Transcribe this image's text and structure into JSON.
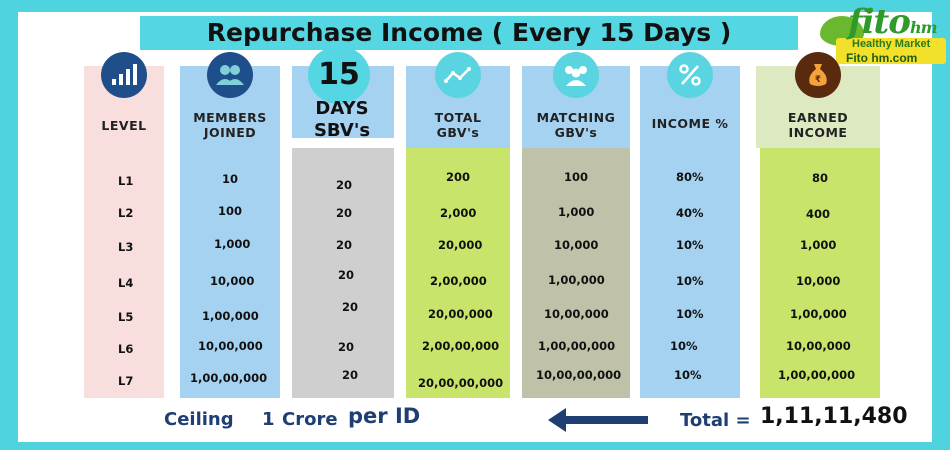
{
  "title": "Repurchase Income ( Every 15 Days )",
  "logo": {
    "brand": "fito",
    "brand_suffix": "hm",
    "tagline": "Healthy Market",
    "site": "Fito hm.com"
  },
  "days_badge": {
    "number": "15",
    "line1": "DAYS",
    "line2": "SBV's"
  },
  "columns": {
    "level": "LEVEL",
    "members": [
      "MEMBERS",
      "JOINED"
    ],
    "total": [
      "TOTAL",
      "GBV's"
    ],
    "matching": [
      "MATCHING",
      "GBV's"
    ],
    "income": "INCOME %",
    "earned": [
      "EARNED",
      "INCOME"
    ]
  },
  "rows": [
    {
      "level": "L1",
      "members": "10",
      "sbv": "20",
      "total": "200",
      "matching": "100",
      "income": "80%",
      "earned": "80"
    },
    {
      "level": "L2",
      "members": "100",
      "sbv": "20",
      "total": "2,000",
      "matching": "1,000",
      "income": "40%",
      "earned": "400"
    },
    {
      "level": "L3",
      "members": "1,000",
      "sbv": "20",
      "total": "20,000",
      "matching": "10,000",
      "income": "10%",
      "earned": "1,000"
    },
    {
      "level": "L4",
      "members": "10,000",
      "sbv": "20",
      "total": "2,00,000",
      "matching": "1,00,000",
      "income": "10%",
      "earned": "10,000"
    },
    {
      "level": "L5",
      "members": "1,00,000",
      "sbv": "20",
      "total": "20,00,000",
      "matching": "10,00,000",
      "income": "10%",
      "earned": "1,00,000"
    },
    {
      "level": "L6",
      "members": "10,00,000",
      "sbv": "20",
      "total": "2,00,00,000",
      "matching": "1,00,00,000",
      "income": "10%",
      "earned": "10,00,000"
    },
    {
      "level": "L7",
      "members": "1,00,00,000",
      "sbv": "20",
      "total": "20,00,00,000",
      "matching": "10,00,00,000",
      "income": "10%",
      "earned": "1,00,00,000"
    }
  ],
  "footer": {
    "ceiling": "Ceiling",
    "crore_num": "1",
    "crore": "Crore",
    "per_id": "per ID",
    "total_label": "Total =",
    "total_value": "1,11,11,480"
  },
  "colors": {
    "background": "#4fd3df",
    "level_col": "#f9dede",
    "members_col": "#a6d2f2",
    "sbv_col": "#cfcfcf",
    "total_col": "#c8e46a",
    "matching_col": "#bfc2a8",
    "income_col": "#a6d2f2",
    "earned_col": "#c8e46a",
    "icon_blue": "#1f4f8a"
  },
  "icons": [
    "bar-chart-icon",
    "members-icon",
    "trend-line-icon",
    "group-icon",
    "percent-icon",
    "money-bag-icon",
    "left-arrow-icon"
  ]
}
